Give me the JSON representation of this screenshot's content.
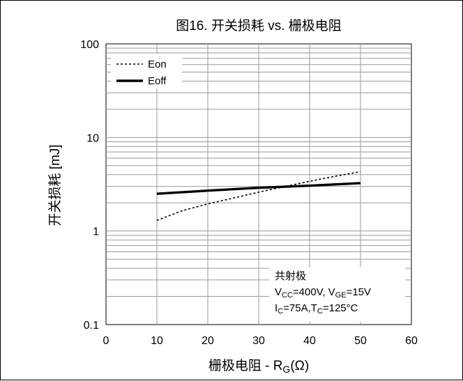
{
  "chart_data": {
    "type": "line",
    "title": "图16. 开关损耗 vs. 栅极电阻",
    "xlabel": "栅极电阻 - R",
    "xlabel_sub": "G",
    "xlabel_tail": "(Ω)",
    "ylabel": "开关损耗 [mJ]",
    "xlim": [
      0,
      60
    ],
    "ylim": [
      0.1,
      100
    ],
    "yscale": "log",
    "grid": true,
    "legend_position": "top-left",
    "x_ticks": [
      "0",
      "10",
      "20",
      "30",
      "40",
      "50",
      "60"
    ],
    "y_ticks": [
      "0.1",
      "1",
      "10",
      "100"
    ],
    "series": [
      {
        "name": "Eon",
        "style": "dotted",
        "x": [
          10,
          15,
          20,
          25,
          30,
          35,
          40,
          45,
          50
        ],
        "y": [
          1.3,
          1.65,
          1.95,
          2.25,
          2.6,
          2.98,
          3.4,
          3.85,
          4.3
        ]
      },
      {
        "name": "Eoff",
        "style": "solid",
        "x": [
          10,
          20,
          30,
          40,
          50
        ],
        "y": [
          2.5,
          2.7,
          2.9,
          3.05,
          3.25
        ]
      }
    ],
    "annotation": {
      "line1": "共射极",
      "line2": {
        "v": "V",
        "cc": "CC",
        "cc_val": "=400V, V",
        "ge": "GE",
        "ge_val": "=15V"
      },
      "line3": {
        "i": "I",
        "c": "C",
        "c_val": "=75A,T",
        "tc": "C",
        "tc_val": "=125°C"
      }
    }
  }
}
